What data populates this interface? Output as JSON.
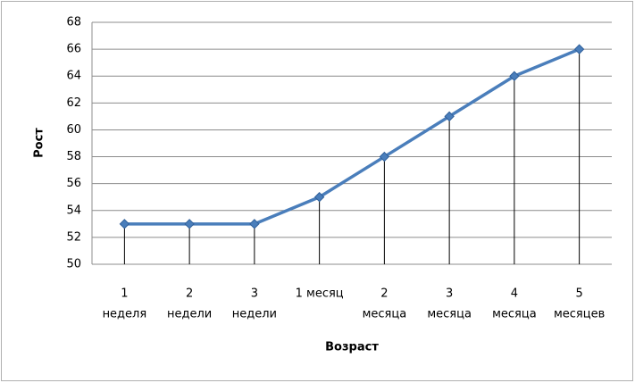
{
  "chart_data": {
    "type": "line",
    "y_label": "Рост",
    "x_label": "Возраст",
    "categories": [
      [
        "1",
        "неделя"
      ],
      [
        "2",
        "недели"
      ],
      [
        "3",
        "недели"
      ],
      [
        "1 месяц"
      ],
      [
        "2",
        "месяца"
      ],
      [
        "3",
        "месяца"
      ],
      [
        "4",
        "месяца"
      ],
      [
        "5",
        "месяцев"
      ]
    ],
    "values": [
      53,
      53,
      53,
      55,
      58,
      61,
      64,
      66
    ],
    "color": "#4a7ebb",
    "ylim": [
      50,
      68
    ],
    "yticks": [
      50,
      52,
      54,
      56,
      58,
      60,
      62,
      64,
      66,
      68
    ],
    "grid": true,
    "drop_lines": true
  }
}
